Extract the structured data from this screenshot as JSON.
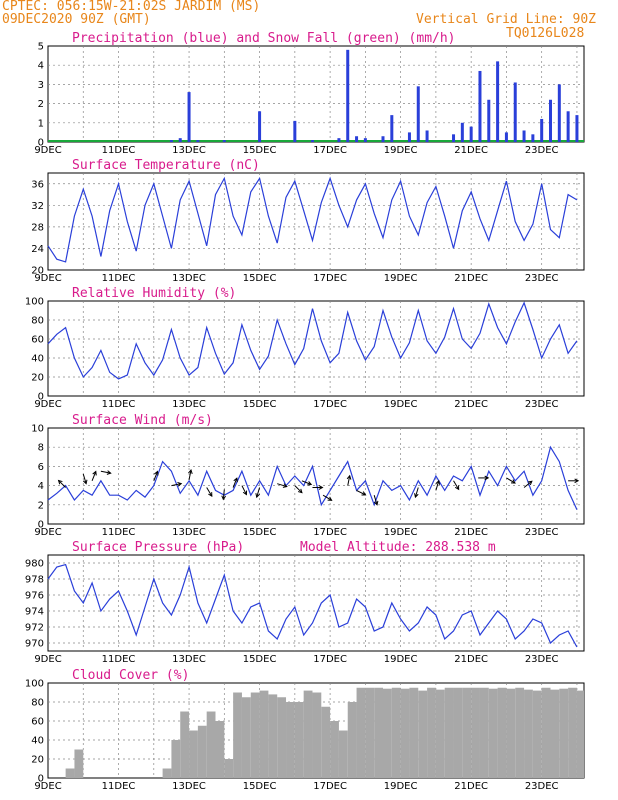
{
  "header": {
    "line1": "CPTEC:  056:15W-21:02S  JARDIM (MS)",
    "line2": "09DEC2020 90Z (GMT)",
    "grid_note": "Vertical Grid Line: 90Z",
    "model_id": "TQ0126L028"
  },
  "colors": {
    "precip": "#2a3fd9",
    "snow": "#19a83a",
    "line": "#2a3fd9",
    "cloud": "#a8a8a8",
    "title": "#d81b8c",
    "header": "#e8861a"
  },
  "x_ticks": [
    "9DEC",
    "11DEC",
    "13DEC",
    "15DEC",
    "17DEC",
    "19DEC",
    "21DEC",
    "23DEC"
  ],
  "chart_data": [
    {
      "id": "precip",
      "type": "bar",
      "title": "Precipitation (blue) and Snow Fall (green) (mm/h)",
      "ylim": [
        0,
        5
      ],
      "yticks": [
        0,
        1,
        2,
        3,
        4,
        5
      ],
      "x_days": [
        0.0,
        0.25,
        0.5,
        0.75,
        1.0,
        1.25,
        1.5,
        1.75,
        2.0,
        2.25,
        2.5,
        2.75,
        3.0,
        3.25,
        3.5,
        3.75,
        4.0,
        4.25,
        4.5,
        4.75,
        5.0,
        5.25,
        5.5,
        5.75,
        6.0,
        6.25,
        6.5,
        6.75,
        7.0,
        7.25,
        7.5,
        7.75,
        8.0,
        8.25,
        8.5,
        8.75,
        9.0,
        9.25,
        9.5,
        9.75,
        10.0,
        10.25,
        10.5,
        10.75,
        11.0,
        11.25,
        11.5,
        11.75,
        12.0,
        12.25,
        12.5,
        12.75,
        13.0,
        13.25,
        13.5,
        13.75,
        14.0,
        14.25,
        14.5,
        14.75,
        15.0
      ],
      "series": [
        {
          "name": "precipitation",
          "values": [
            0,
            0,
            0,
            0,
            0,
            0,
            0,
            0,
            0,
            0,
            0,
            0,
            0,
            0,
            0.1,
            0.2,
            2.6,
            0.1,
            0,
            0,
            0.1,
            0,
            0,
            0,
            1.6,
            0,
            0,
            0,
            1.1,
            0,
            0.1,
            0,
            0,
            0.2,
            4.8,
            0.3,
            0.2,
            0,
            0.3,
            1.4,
            0,
            0.5,
            2.9,
            0.6,
            0,
            0,
            0.4,
            1.0,
            0.8,
            3.7,
            2.2,
            4.2,
            0.5,
            3.1,
            0.6,
            0.4,
            1.2,
            2.2,
            3.0,
            1.6,
            1.4
          ]
        },
        {
          "name": "snow fall",
          "values": [
            0,
            0,
            0,
            0,
            0,
            0,
            0,
            0,
            0,
            0,
            0,
            0,
            0,
            0,
            0,
            0,
            0,
            0,
            0,
            0,
            0,
            0,
            0,
            0,
            0,
            0,
            0,
            0,
            0,
            0,
            0,
            0,
            0,
            0,
            0,
            0,
            0,
            0,
            0,
            0,
            0,
            0,
            0,
            0,
            0,
            0,
            0,
            0,
            0,
            0,
            0,
            0,
            0,
            0,
            0,
            0,
            0,
            0,
            0,
            0,
            0
          ]
        }
      ],
      "note": "",
      "x_end_day": 15.1
    },
    {
      "id": "temp",
      "type": "line",
      "title": "Surface Temperature (nC)",
      "ylim": [
        20,
        38
      ],
      "yticks": [
        20,
        24,
        28,
        32,
        36
      ],
      "x_days": [
        0.0,
        0.25,
        0.5,
        0.75,
        1.0,
        1.25,
        1.5,
        1.75,
        2.0,
        2.25,
        2.5,
        2.75,
        3.0,
        3.25,
        3.5,
        3.75,
        4.0,
        4.25,
        4.5,
        4.75,
        5.0,
        5.25,
        5.5,
        5.75,
        6.0,
        6.25,
        6.5,
        6.75,
        7.0,
        7.25,
        7.5,
        7.75,
        8.0,
        8.25,
        8.5,
        8.75,
        9.0,
        9.25,
        9.5,
        9.75,
        10.0,
        10.25,
        10.5,
        10.75,
        11.0,
        11.25,
        11.5,
        11.75,
        12.0,
        12.25,
        12.5,
        12.75,
        13.0,
        13.25,
        13.5,
        13.75,
        14.0,
        14.25,
        14.5,
        14.75,
        15.0
      ],
      "series": [
        {
          "name": "",
          "values": [
            24.5,
            22.0,
            21.5,
            30.0,
            35.0,
            30.0,
            22.5,
            31.0,
            36.0,
            29.0,
            23.5,
            32.0,
            36.0,
            30.0,
            24.0,
            33.0,
            36.5,
            30.5,
            24.5,
            34.0,
            37.0,
            30.0,
            26.5,
            34.5,
            37.0,
            30.0,
            25.0,
            33.5,
            36.5,
            31.0,
            25.5,
            32.5,
            37.0,
            32.0,
            28.0,
            33.0,
            36.0,
            30.5,
            26.0,
            33.0,
            36.5,
            30.0,
            26.5,
            32.5,
            35.5,
            30.0,
            24.0,
            31.0,
            34.5,
            29.5,
            25.5,
            31.0,
            36.5,
            29.0,
            25.5,
            28.5,
            36.0,
            27.5,
            26.0,
            34.0,
            33.0
          ]
        }
      ],
      "note": "",
      "x_end_day": 15.1
    },
    {
      "id": "rh",
      "type": "line",
      "title": "Relative Humidity (%)",
      "ylim": [
        0,
        100
      ],
      "yticks": [
        0,
        20,
        40,
        60,
        80,
        100
      ],
      "x_days": [
        0.0,
        0.25,
        0.5,
        0.75,
        1.0,
        1.25,
        1.5,
        1.75,
        2.0,
        2.25,
        2.5,
        2.75,
        3.0,
        3.25,
        3.5,
        3.75,
        4.0,
        4.25,
        4.5,
        4.75,
        5.0,
        5.25,
        5.5,
        5.75,
        6.0,
        6.25,
        6.5,
        6.75,
        7.0,
        7.25,
        7.5,
        7.75,
        8.0,
        8.25,
        8.5,
        8.75,
        9.0,
        9.25,
        9.5,
        9.75,
        10.0,
        10.25,
        10.5,
        10.75,
        11.0,
        11.25,
        11.5,
        11.75,
        12.0,
        12.25,
        12.5,
        12.75,
        13.0,
        13.25,
        13.5,
        13.75,
        14.0,
        14.25,
        14.5,
        14.75,
        15.0
      ],
      "series": [
        {
          "name": "",
          "values": [
            55,
            65,
            72,
            40,
            20,
            30,
            48,
            25,
            18,
            22,
            55,
            35,
            22,
            38,
            70,
            40,
            22,
            30,
            72,
            45,
            23,
            35,
            75,
            48,
            28,
            42,
            80,
            55,
            33,
            50,
            92,
            58,
            35,
            45,
            88,
            58,
            38,
            52,
            90,
            62,
            40,
            56,
            90,
            58,
            45,
            62,
            92,
            60,
            50,
            66,
            97,
            72,
            55,
            78,
            98,
            70,
            40,
            60,
            75,
            45,
            58
          ]
        }
      ],
      "note": "",
      "x_end_day": 15.1
    },
    {
      "id": "wind",
      "type": "line",
      "title": "Surface Wind (m/s)",
      "ylim": [
        0,
        10
      ],
      "yticks": [
        0,
        2,
        4,
        6,
        8,
        10
      ],
      "x_days": [
        0.0,
        0.25,
        0.5,
        0.75,
        1.0,
        1.25,
        1.5,
        1.75,
        2.0,
        2.25,
        2.5,
        2.75,
        3.0,
        3.25,
        3.5,
        3.75,
        4.0,
        4.25,
        4.5,
        4.75,
        5.0,
        5.25,
        5.5,
        5.75,
        6.0,
        6.25,
        6.5,
        6.75,
        7.0,
        7.25,
        7.5,
        7.75,
        8.0,
        8.25,
        8.5,
        8.75,
        9.0,
        9.25,
        9.5,
        9.75,
        10.0,
        10.25,
        10.5,
        10.75,
        11.0,
        11.25,
        11.5,
        11.75,
        12.0,
        12.25,
        12.5,
        12.75,
        13.0,
        13.25,
        13.5,
        13.75,
        14.0,
        14.25,
        14.5,
        14.75,
        15.0
      ],
      "series": [
        {
          "name": "",
          "values": [
            2.5,
            3.2,
            4.0,
            2.5,
            3.5,
            3.0,
            4.5,
            3.0,
            3.0,
            2.5,
            3.5,
            2.8,
            4.0,
            6.5,
            5.5,
            3.2,
            4.5,
            3.0,
            5.5,
            3.5,
            3.0,
            3.5,
            5.5,
            3.0,
            4.5,
            3.0,
            6.0,
            4.0,
            5.0,
            4.0,
            6.0,
            2.0,
            3.5,
            5.0,
            6.5,
            3.5,
            4.5,
            2.0,
            4.5,
            3.5,
            4.0,
            2.5,
            4.5,
            3.0,
            5.0,
            3.5,
            5.0,
            4.5,
            6.0,
            3.0,
            5.5,
            4.0,
            6.0,
            4.5,
            5.5,
            3.0,
            4.5,
            8.0,
            6.5,
            3.5,
            1.5
          ]
        }
      ],
      "note": "",
      "x_end_day": 15.1
    },
    {
      "id": "pressure",
      "type": "line",
      "title": "Surface Pressure (hPa)",
      "ylim": [
        969,
        981
      ],
      "yticks": [
        970,
        972,
        974,
        976,
        978,
        980
      ],
      "x_days": [
        0.0,
        0.25,
        0.5,
        0.75,
        1.0,
        1.25,
        1.5,
        1.75,
        2.0,
        2.25,
        2.5,
        2.75,
        3.0,
        3.25,
        3.5,
        3.75,
        4.0,
        4.25,
        4.5,
        4.75,
        5.0,
        5.25,
        5.5,
        5.75,
        6.0,
        6.25,
        6.5,
        6.75,
        7.0,
        7.25,
        7.5,
        7.75,
        8.0,
        8.25,
        8.5,
        8.75,
        9.0,
        9.25,
        9.5,
        9.75,
        10.0,
        10.25,
        10.5,
        10.75,
        11.0,
        11.25,
        11.5,
        11.75,
        12.0,
        12.25,
        12.5,
        12.75,
        13.0,
        13.25,
        13.5,
        13.75,
        14.0,
        14.25,
        14.5,
        14.75,
        15.0
      ],
      "series": [
        {
          "name": "",
          "values": [
            978.0,
            979.5,
            979.8,
            976.5,
            975.0,
            977.5,
            974.0,
            975.5,
            976.5,
            974.0,
            971.0,
            974.5,
            978.0,
            975.0,
            973.5,
            976.0,
            979.5,
            975.0,
            972.5,
            975.5,
            978.5,
            974.0,
            972.5,
            974.5,
            975.0,
            971.5,
            970.5,
            973.0,
            974.5,
            971.0,
            972.5,
            975.0,
            976.0,
            972.0,
            972.5,
            975.5,
            974.5,
            971.5,
            972.0,
            975.0,
            973.0,
            971.5,
            972.5,
            974.5,
            973.5,
            970.5,
            971.5,
            973.5,
            974.0,
            971.0,
            972.5,
            974.0,
            973.0,
            970.5,
            971.5,
            973.0,
            972.5,
            970.0,
            971.0,
            971.5,
            969.5
          ]
        }
      ],
      "note": "",
      "x_end_day": 15.1
    },
    {
      "id": "cloud",
      "type": "area",
      "title": "Cloud Cover (%)",
      "ylim": [
        0,
        100
      ],
      "yticks": [
        0,
        20,
        40,
        60,
        80,
        100
      ],
      "x_days": [
        0.0,
        0.25,
        0.5,
        0.75,
        1.0,
        1.25,
        1.5,
        1.75,
        2.0,
        2.25,
        2.5,
        2.75,
        3.0,
        3.25,
        3.5,
        3.75,
        4.0,
        4.25,
        4.5,
        4.75,
        5.0,
        5.25,
        5.5,
        5.75,
        6.0,
        6.25,
        6.5,
        6.75,
        7.0,
        7.25,
        7.5,
        7.75,
        8.0,
        8.25,
        8.5,
        8.75,
        9.0,
        9.25,
        9.5,
        9.75,
        10.0,
        10.25,
        10.5,
        10.75,
        11.0,
        11.25,
        11.5,
        11.75,
        12.0,
        12.25,
        12.5,
        12.75,
        13.0,
        13.25,
        13.5,
        13.75,
        14.0,
        14.25,
        14.5,
        14.75,
        15.0
      ],
      "series": [
        {
          "name": "",
          "values": [
            0,
            0,
            10,
            30,
            0,
            0,
            0,
            0,
            0,
            0,
            0,
            0,
            0,
            10,
            40,
            70,
            50,
            55,
            70,
            60,
            20,
            90,
            85,
            90,
            92,
            88,
            85,
            80,
            80,
            92,
            90,
            75,
            60,
            50,
            80,
            95,
            95,
            95,
            94,
            95,
            94,
            95,
            92,
            95,
            93,
            95,
            95,
            95,
            95,
            95,
            94,
            95,
            94,
            95,
            93,
            92,
            95,
            93,
            94,
            95,
            92
          ]
        }
      ],
      "note": "",
      "x_end_day": 15.1
    }
  ],
  "panel_titles_extra": {
    "model_altitude": "Model Altitude: 288.538 m"
  },
  "wind_arrows": [
    {
      "day": 0.5,
      "speed": 3.8,
      "dx": -0.6,
      "dy": -0.6
    },
    {
      "day": 1.0,
      "speed": 5.2,
      "dx": 0.3,
      "dy": 1.0
    },
    {
      "day": 1.25,
      "speed": 4.5,
      "dx": 0.4,
      "dy": -1.0
    },
    {
      "day": 1.5,
      "speed": 5.5,
      "dx": 1.0,
      "dy": 0.2
    },
    {
      "day": 3.0,
      "speed": 4.5,
      "dx": 0.4,
      "dy": -1.0
    },
    {
      "day": 3.5,
      "speed": 4.0,
      "dx": 1.0,
      "dy": -0.2
    },
    {
      "day": 4.0,
      "speed": 4.6,
      "dx": 0.2,
      "dy": -1.0
    },
    {
      "day": 4.5,
      "speed": 3.8,
      "dx": 0.6,
      "dy": 1.0
    },
    {
      "day": 5.0,
      "speed": 3.6,
      "dx": -0.1,
      "dy": 1.0
    },
    {
      "day": 5.25,
      "speed": 3.8,
      "dx": 0.4,
      "dy": -1.0
    },
    {
      "day": 5.5,
      "speed": 4.0,
      "dx": 0.5,
      "dy": 1.0
    },
    {
      "day": 6.0,
      "speed": 3.8,
      "dx": -0.3,
      "dy": 1.0
    },
    {
      "day": 6.5,
      "speed": 4.2,
      "dx": 1.0,
      "dy": 0.3
    },
    {
      "day": 7.0,
      "speed": 4.0,
      "dx": 0.8,
      "dy": 0.8
    },
    {
      "day": 7.2,
      "speed": 4.5,
      "dx": 1.0,
      "dy": 0.4
    },
    {
      "day": 7.5,
      "speed": 3.8,
      "dx": 1.0,
      "dy": 0.0
    },
    {
      "day": 7.8,
      "speed": 3.0,
      "dx": 1.0,
      "dy": 0.6
    },
    {
      "day": 8.5,
      "speed": 4.0,
      "dx": 0.2,
      "dy": -1.0
    },
    {
      "day": 8.75,
      "speed": 3.5,
      "dx": 1.0,
      "dy": 0.5
    },
    {
      "day": 9.25,
      "speed": 3.0,
      "dx": 0.3,
      "dy": 1.0
    },
    {
      "day": 10.5,
      "speed": 3.8,
      "dx": -0.3,
      "dy": 1.0
    },
    {
      "day": 11.0,
      "speed": 3.5,
      "dx": 0.3,
      "dy": -1.0
    },
    {
      "day": 11.5,
      "speed": 4.5,
      "dx": 0.6,
      "dy": 1.0
    },
    {
      "day": 12.2,
      "speed": 4.8,
      "dx": 1.0,
      "dy": 0.0
    },
    {
      "day": 13.0,
      "speed": 4.8,
      "dx": 1.0,
      "dy": 0.6
    },
    {
      "day": 13.5,
      "speed": 3.8,
      "dx": 1.0,
      "dy": -0.8
    },
    {
      "day": 14.75,
      "speed": 4.5,
      "dx": 1.0,
      "dy": 0.0
    }
  ]
}
